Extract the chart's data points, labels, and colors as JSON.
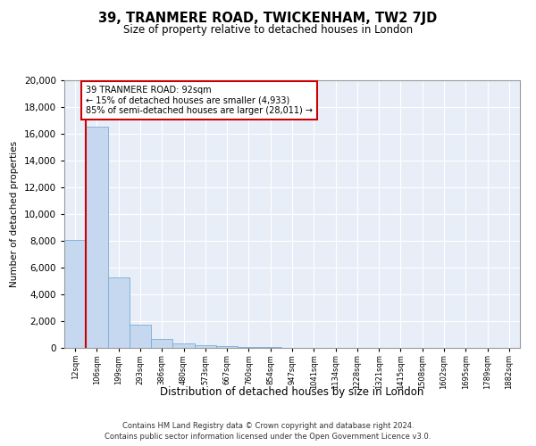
{
  "title": "39, TRANMERE ROAD, TWICKENHAM, TW2 7JD",
  "subtitle": "Size of property relative to detached houses in London",
  "xlabel": "Distribution of detached houses by size in London",
  "ylabel": "Number of detached properties",
  "bar_color": "#c5d8f0",
  "bar_edge_color": "#7aadd4",
  "background_color": "#e8eef8",
  "grid_color": "#ffffff",
  "categories": [
    "12sqm",
    "106sqm",
    "199sqm",
    "293sqm",
    "386sqm",
    "480sqm",
    "573sqm",
    "667sqm",
    "760sqm",
    "854sqm",
    "947sqm",
    "1041sqm",
    "1134sqm",
    "1228sqm",
    "1321sqm",
    "1415sqm",
    "1508sqm",
    "1602sqm",
    "1695sqm",
    "1789sqm",
    "1882sqm"
  ],
  "values": [
    8100,
    16500,
    5300,
    1750,
    650,
    350,
    200,
    150,
    100,
    50,
    30,
    0,
    0,
    0,
    0,
    0,
    0,
    0,
    0,
    0,
    0
  ],
  "ylim": [
    0,
    20000
  ],
  "yticks": [
    0,
    2000,
    4000,
    6000,
    8000,
    10000,
    12000,
    14000,
    16000,
    18000,
    20000
  ],
  "vline_x": 0.5,
  "annotation_text": "39 TRANMERE ROAD: 92sqm\n← 15% of detached houses are smaller (4,933)\n85% of semi-detached houses are larger (28,011) →",
  "annotation_box_color": "#ffffff",
  "annotation_border_color": "#cc0000",
  "vline_color": "#cc0000",
  "footer_line1": "Contains HM Land Registry data © Crown copyright and database right 2024.",
  "footer_line2": "Contains public sector information licensed under the Open Government Licence v3.0."
}
